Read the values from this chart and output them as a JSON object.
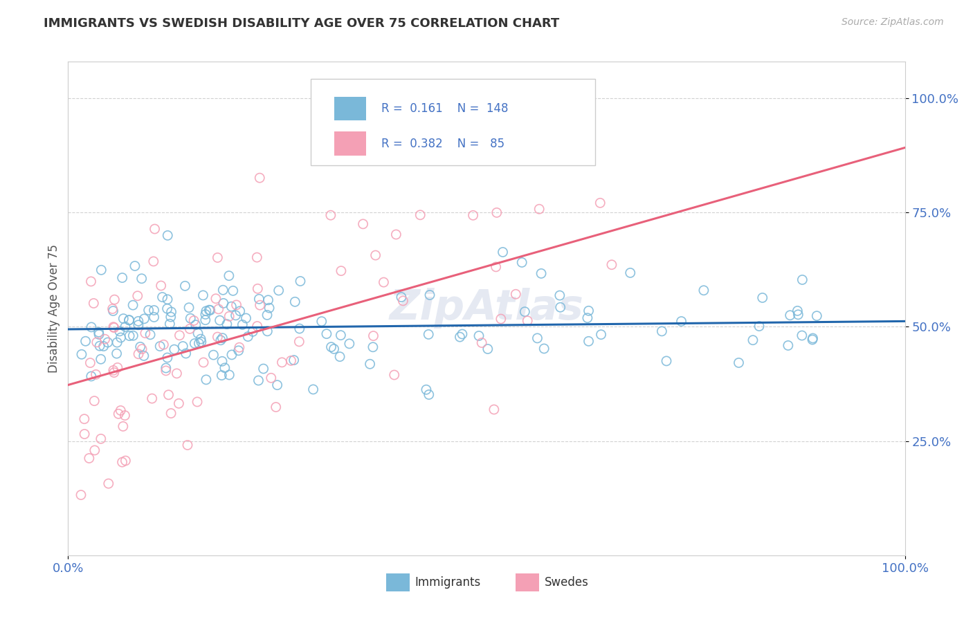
{
  "title": "IMMIGRANTS VS SWEDISH DISABILITY AGE OVER 75 CORRELATION CHART",
  "source_text": "Source: ZipAtlas.com",
  "ylabel": "Disability Age Over 75",
  "legend_immigrants_R": "0.161",
  "legend_immigrants_N": "148",
  "legend_swedes_R": "0.382",
  "legend_swedes_N": "85",
  "legend_label_immigrants": "Immigrants",
  "legend_label_swedes": "Swedes",
  "blue_color": "#7ab8d9",
  "pink_color": "#f4a0b5",
  "blue_line_color": "#2166ac",
  "pink_line_color": "#e8607a",
  "title_color": "#333333",
  "axis_label_color": "#4472c4",
  "background_color": "#ffffff",
  "grid_color": "#cccccc",
  "n_imm": 148,
  "n_swe": 85
}
